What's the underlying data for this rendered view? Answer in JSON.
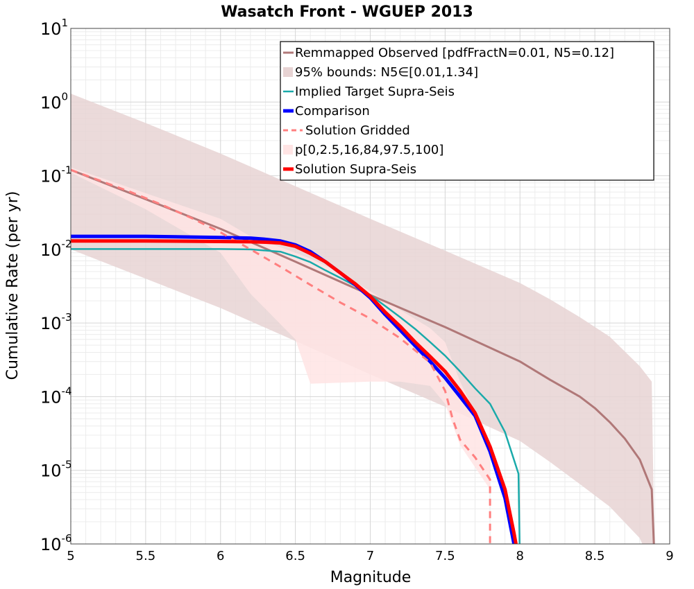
{
  "chart_data": {
    "type": "line",
    "title": "Wasatch Front - WGUEP 2013",
    "xlabel": "Magnitude",
    "ylabel": "Cumulative Rate (per yr)",
    "xlim": [
      5,
      9
    ],
    "ylim": [
      1e-06,
      10
    ],
    "yscale": "log",
    "grid": true,
    "legend_position": "top-right",
    "x_ticks": [
      "5",
      "5.5",
      "6",
      "6.5",
      "7",
      "7.5",
      "8",
      "8.5",
      "9"
    ],
    "y_ticks": [
      {
        "base": "10",
        "exp": "1",
        "value": 10
      },
      {
        "base": "10",
        "exp": "0",
        "value": 1
      },
      {
        "base": "10",
        "exp": "-1",
        "value": 0.1
      },
      {
        "base": "10",
        "exp": "-2",
        "value": 0.01
      },
      {
        "base": "10",
        "exp": "-3",
        "value": 0.001
      },
      {
        "base": "10",
        "exp": "-4",
        "value": 0.0001
      },
      {
        "base": "10",
        "exp": "-5",
        "value": 1e-05
      },
      {
        "base": "10",
        "exp": "-6",
        "value": 1e-06
      }
    ],
    "series": [
      {
        "name": "Remmapped Observed [pdfFractN=0.01, N5=0.12]",
        "kind": "line",
        "color": "#b07878",
        "width": 3,
        "x": [
          5,
          5.5,
          6,
          6.5,
          7,
          7.5,
          8,
          8.2,
          8.4,
          8.5,
          8.6,
          8.7,
          8.8,
          8.88,
          8.9
        ],
        "y": [
          0.12,
          0.048,
          0.019,
          0.0068,
          0.0024,
          0.00088,
          0.0003,
          0.00017,
          0.0001,
          7e-05,
          4.5e-05,
          2.7e-05,
          1.4e-05,
          5.5e-06,
          1e-07
        ]
      },
      {
        "name": "95% bounds: N5∈[0.01,1.34]",
        "kind": "band",
        "color": "#e7d3d3",
        "x": [
          5,
          5.5,
          6,
          6.5,
          7,
          7.5,
          8,
          8.2,
          8.4,
          8.6,
          8.8,
          8.88,
          8.9
        ],
        "lower": [
          0.01,
          0.004,
          0.0016,
          0.00057,
          0.0002,
          7.3e-05,
          2.5e-05,
          1.3e-05,
          6.5e-06,
          3.2e-06,
          1.2e-06,
          6e-07,
          1e-07
        ],
        "upper": [
          1.3,
          0.52,
          0.2,
          0.072,
          0.026,
          0.0096,
          0.0035,
          0.0021,
          0.0012,
          0.00065,
          0.00026,
          0.00016,
          1e-07
        ]
      },
      {
        "name": "Implied Target Supra-Seis",
        "kind": "line",
        "color": "#1aaaaa",
        "width": 2.5,
        "x": [
          5,
          5.5,
          6,
          6.2,
          6.4,
          6.5,
          6.6,
          6.7,
          6.8,
          6.9,
          7,
          7.1,
          7.2,
          7.3,
          7.4,
          7.5,
          7.6,
          7.7,
          7.8,
          7.9,
          7.99,
          8.0
        ],
        "y": [
          0.0101,
          0.0101,
          0.0101,
          0.01,
          0.0093,
          0.008,
          0.0067,
          0.0052,
          0.0041,
          0.0032,
          0.0024,
          0.0017,
          0.0012,
          0.00083,
          0.00055,
          0.00036,
          0.00022,
          0.00013,
          8e-05,
          3.3e-05,
          9e-06,
          1e-07
        ]
      },
      {
        "name": "Comparison",
        "kind": "line",
        "color": "#0000ff",
        "width": 5,
        "x": [
          5,
          5.5,
          6,
          6.2,
          6.3,
          6.4,
          6.5,
          6.6,
          6.7,
          6.8,
          6.9,
          7,
          7.1,
          7.2,
          7.3,
          7.4,
          7.5,
          7.6,
          7.7,
          7.8,
          7.9,
          7.96,
          8.0
        ],
        "y": [
          0.015,
          0.015,
          0.0145,
          0.0142,
          0.0137,
          0.013,
          0.0115,
          0.0093,
          0.0068,
          0.0048,
          0.0033,
          0.0022,
          0.0013,
          0.0008,
          0.00049,
          0.0003,
          0.00018,
          0.0001,
          5.5e-05,
          1.8e-05,
          4.2e-06,
          1e-06,
          2e-07
        ]
      },
      {
        "name": "Solution Gridded",
        "kind": "line",
        "color": "#ff7f7f",
        "width": 3,
        "dash": "10,8",
        "x": [
          5,
          5.2,
          5.4,
          5.6,
          5.8,
          6,
          6.2,
          6.4,
          6.6,
          6.8,
          7,
          7.2,
          7.4,
          7.5,
          7.55,
          7.6,
          7.7,
          7.8,
          7.8
        ],
        "y": [
          0.12,
          0.085,
          0.06,
          0.041,
          0.027,
          0.017,
          0.01,
          0.0058,
          0.0033,
          0.0019,
          0.00115,
          0.00062,
          0.00029,
          0.00012,
          5e-05,
          2.6e-05,
          1.5e-05,
          7.5e-06,
          1e-07
        ]
      },
      {
        "name": "p[0,2.5,16,84,97.5,100]",
        "kind": "band",
        "color": "#ffe4e4",
        "x": [
          5,
          5.5,
          6,
          6.2,
          6.5,
          6.6,
          6.8,
          7,
          7.2,
          7.4,
          7.5,
          7.6,
          7.7,
          7.8
        ],
        "lower": [
          0.11,
          0.035,
          0.009,
          0.0025,
          0.0006,
          0.00015,
          0.000155,
          0.00016,
          0.00016,
          0.00014,
          8e-05,
          2.2e-05,
          1.1e-05,
          5.5e-06
        ],
        "upper": [
          0.13,
          0.058,
          0.026,
          0.015,
          0.009,
          0.0075,
          0.0048,
          0.0027,
          0.0015,
          0.00085,
          0.00055,
          0.00016,
          6e-05,
          2.2e-05
        ]
      },
      {
        "name": "Solution Supra-Seis",
        "kind": "line",
        "color": "#ff0000",
        "width": 5,
        "x": [
          5,
          5.5,
          6,
          6.2,
          6.3,
          6.4,
          6.5,
          6.6,
          6.7,
          6.8,
          6.9,
          7,
          7.1,
          7.2,
          7.3,
          7.4,
          7.5,
          7.6,
          7.7,
          7.8,
          7.9,
          7.96,
          8.0
        ],
        "y": [
          0.013,
          0.013,
          0.0128,
          0.0127,
          0.0125,
          0.0122,
          0.011,
          0.0088,
          0.0068,
          0.0048,
          0.0034,
          0.0023,
          0.0014,
          0.0009,
          0.00055,
          0.00035,
          0.00022,
          0.00012,
          6e-05,
          2.1e-05,
          5.5e-06,
          1.4e-06,
          3e-07
        ]
      }
    ]
  }
}
